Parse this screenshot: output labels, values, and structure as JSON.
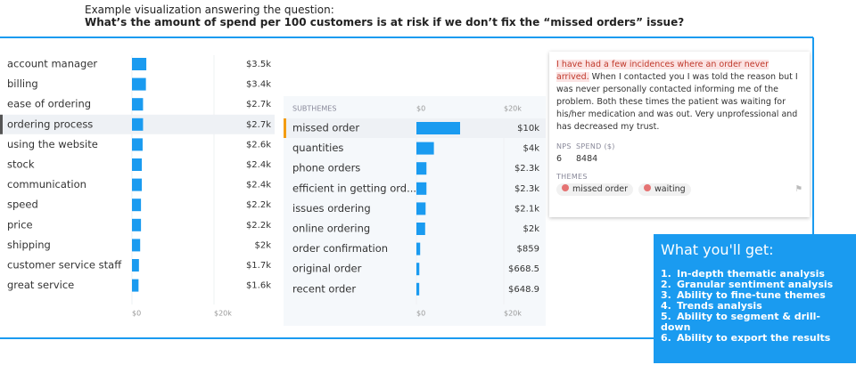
{
  "header": {
    "intro": "Example visualization answering the question:",
    "question": "What’s the amount of spend per 100 customers is at risk if we don’t fix the “missed orders” issue?"
  },
  "chart_data": [
    {
      "type": "hbar",
      "categories": [
        "account manager",
        "billing",
        "ease of ordering",
        "ordering process",
        "using the website",
        "stock",
        "communication",
        "speed",
        "price",
        "shipping",
        "customer service staff",
        "great service"
      ],
      "values": [
        3500,
        3400,
        2700,
        2700,
        2600,
        2400,
        2400,
        2200,
        2200,
        2000,
        1700,
        1600
      ],
      "value_labels": [
        "$3.5k",
        "$3.4k",
        "$2.7k",
        "$2.7k",
        "$2.6k",
        "$2.4k",
        "$2.4k",
        "$2.2k",
        "$2.2k",
        "$2k",
        "$1.7k",
        "$1.6k"
      ],
      "selected": "ordering process",
      "color": "#1a9bf0",
      "xlim": [
        0,
        20000
      ],
      "xticks": [
        {
          "value": 0,
          "label": "$0"
        },
        {
          "value": 20000,
          "label": "$20k"
        }
      ]
    },
    {
      "type": "hbar",
      "header": "SUBTHEMES",
      "categories": [
        "missed order",
        "quantities",
        "phone orders",
        "efficient in getting ord...",
        "issues ordering",
        "online ordering",
        "order confirmation",
        "original order",
        "recent order"
      ],
      "values": [
        10000,
        4000,
        2300,
        2300,
        2100,
        2000,
        859,
        668.5,
        648.9
      ],
      "value_labels": [
        "$10k",
        "$4k",
        "$2.3k",
        "$2.3k",
        "$2.1k",
        "$2k",
        "$859",
        "$668.5",
        "$648.9"
      ],
      "selected": "missed order",
      "color": "#1a9bf0",
      "xlim": [
        0,
        20000
      ],
      "xticks": [
        {
          "value": 0,
          "label": "$0"
        },
        {
          "value": 20000,
          "label": "$20k"
        }
      ]
    }
  ],
  "comment": {
    "highlight": "I have had a few incidences where an order never arrived.",
    "text": "When I contacted you I was told the reason but I was never personally contacted informing me of the problem. Both these times the patient was waiting for his/her medication and was out. Very unprofessional and has decreased my trust.",
    "nps_label": "NPS",
    "nps": "6",
    "spend_label": "SPEND ($)",
    "spend": "8484",
    "themes_label": "THEMES",
    "themes": [
      "missed order",
      "waiting"
    ]
  },
  "callout": {
    "title": "What you'll get:",
    "items": [
      {
        "number": "1.",
        "text": "In-depth thematic analysis"
      },
      {
        "number": "2.",
        "text": "Granular sentiment analysis"
      },
      {
        "number": "3.",
        "text": "Ability to fine-tune themes"
      },
      {
        "number": "4.",
        "text": "Trends analysis"
      },
      {
        "number": "5.",
        "text": "Ability to segment & drill-down"
      },
      {
        "number": "6.",
        "text": "Ability to export the results"
      }
    ]
  }
}
